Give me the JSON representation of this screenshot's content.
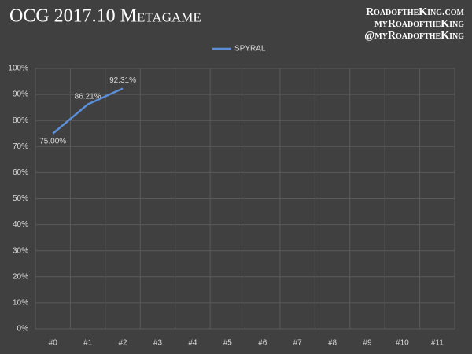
{
  "chart_data": {
    "type": "line",
    "title": "OCG 2017.10 Metagame",
    "annotations": [
      "RoadoftheKing.com",
      "myRoadoftheKing",
      "@myRoadoftheKing"
    ],
    "categories": [
      "#0",
      "#1",
      "#2",
      "#3",
      "#4",
      "#5",
      "#6",
      "#7",
      "#8",
      "#9",
      "#10",
      "#11"
    ],
    "series": [
      {
        "name": "SPYRAL",
        "color": "#5b8ed6",
        "values": [
          75.0,
          86.21,
          92.31,
          null,
          null,
          null,
          null,
          null,
          null,
          null,
          null,
          null
        ],
        "value_labels": [
          "75.00%",
          "86.21%",
          "92.31%",
          null,
          null,
          null,
          null,
          null,
          null,
          null,
          null,
          null
        ]
      }
    ],
    "ylim": [
      0,
      100
    ],
    "yticks": [
      {
        "value": 0,
        "label": "0%"
      },
      {
        "value": 10,
        "label": "10%"
      },
      {
        "value": 20,
        "label": "20%"
      },
      {
        "value": 30,
        "label": "30%"
      },
      {
        "value": 40,
        "label": "40%"
      },
      {
        "value": 50,
        "label": "50%"
      },
      {
        "value": 60,
        "label": "60%"
      },
      {
        "value": 70,
        "label": "70%"
      },
      {
        "value": 80,
        "label": "80%"
      },
      {
        "value": 90,
        "label": "90%"
      },
      {
        "value": 100,
        "label": "100%"
      }
    ],
    "grid": true,
    "legend": "top"
  }
}
